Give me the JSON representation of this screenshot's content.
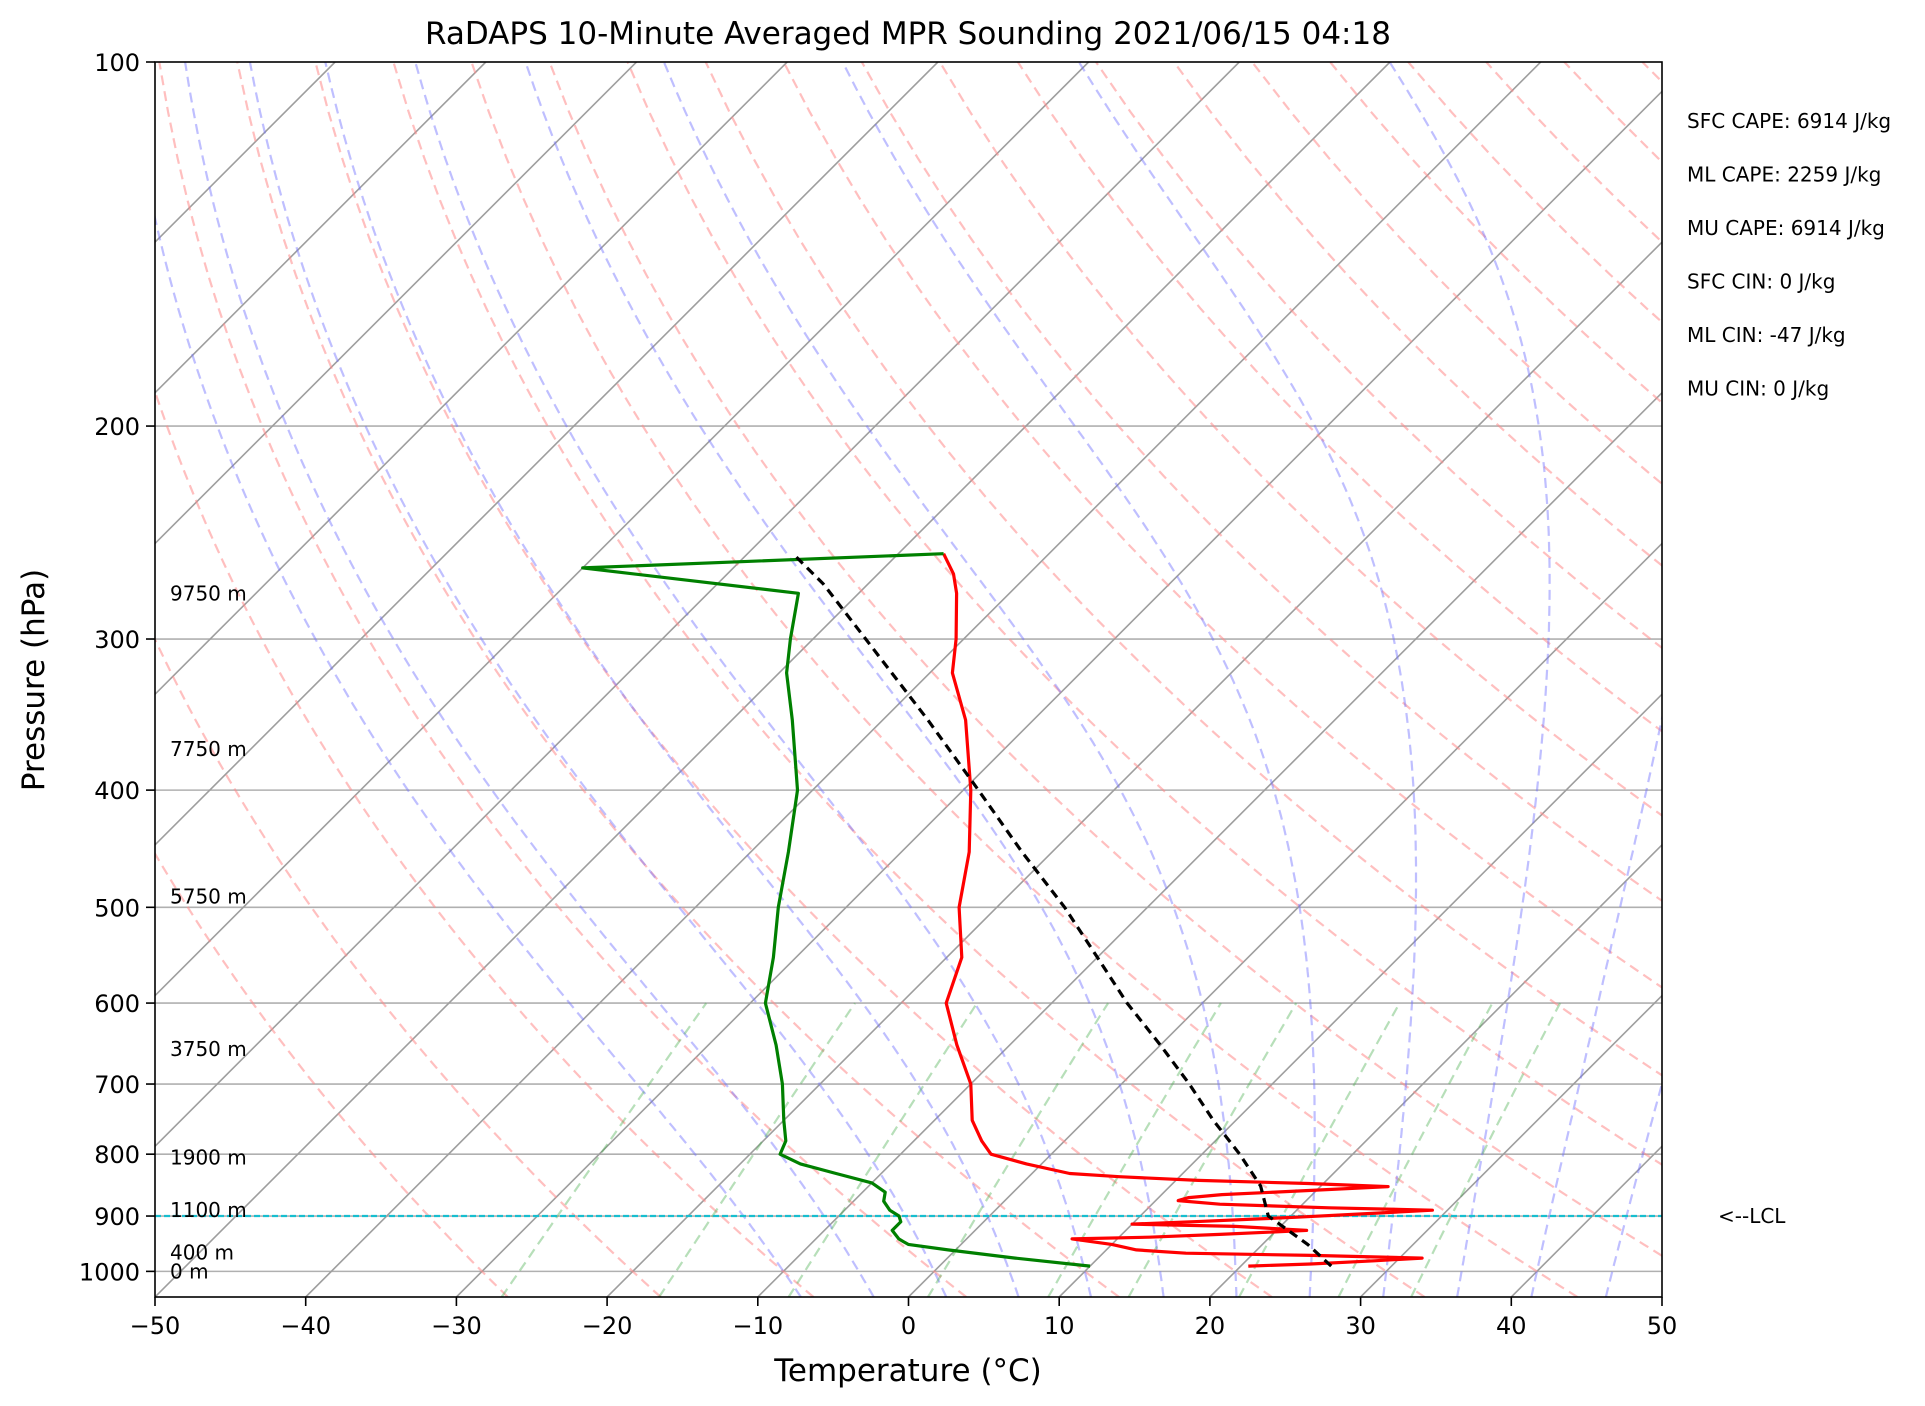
{
  "chart_data": {
    "type": "line",
    "subtype": "skew-T log-P",
    "title": "RaDAPS 10-Minute Averaged MPR Sounding 2021/06/15 04:18",
    "xlabel": "Temperature (°C)",
    "ylabel": "Pressure (hPa)",
    "xlim": [
      -50,
      50
    ],
    "ylim": [
      1050,
      100
    ],
    "y_scale": "log",
    "grid": true,
    "x_ticks": [
      -50,
      -40,
      -30,
      -20,
      -10,
      0,
      10,
      20,
      30,
      40,
      50
    ],
    "x_tick_labels": [
      "−50",
      "−40",
      "−30",
      "−20",
      "−10",
      "0",
      "10",
      "20",
      "30",
      "40",
      "50"
    ],
    "y_ticks": [
      100,
      200,
      300,
      400,
      500,
      600,
      700,
      800,
      900,
      1000
    ],
    "y_tick_labels": [
      "100",
      "200",
      "300",
      "400",
      "500",
      "600",
      "700",
      "800",
      "900",
      "1000"
    ],
    "height_labels": [
      {
        "text": "9750 m",
        "p": 275
      },
      {
        "text": "7750 m",
        "p": 370
      },
      {
        "text": "5750 m",
        "p": 490
      },
      {
        "text": "3750 m",
        "p": 655
      },
      {
        "text": "1900 m",
        "p": 805
      },
      {
        "text": "1100 m",
        "p": 890
      },
      {
        "text": "400 m",
        "p": 965
      },
      {
        "text": "0 m",
        "p": 1000
      }
    ],
    "parameters": [
      "SFC CAPE: 6914 J/kg",
      "ML CAPE: 2259 J/kg",
      "MU CAPE: 6914 J/kg",
      "SFC CIN: 0 J/kg",
      "ML CIN: -47 J/kg",
      "MU CIN: 0 J/kg"
    ],
    "lcl": {
      "p": 900,
      "label": "<--LCL",
      "color": "#17becf"
    },
    "series": [
      {
        "role": "temperature",
        "color": "#ff0000",
        "points": [
          {
            "p": 990,
            "t": 20.5
          },
          {
            "p": 986,
            "t": 24.5
          },
          {
            "p": 980,
            "t": 28.5
          },
          {
            "p": 975,
            "t": 31.5
          },
          {
            "p": 970,
            "t": 24.0
          },
          {
            "p": 966,
            "t": 15.5
          },
          {
            "p": 960,
            "t": 12.0
          },
          {
            "p": 950,
            "t": 10.0
          },
          {
            "p": 940,
            "t": 7.0
          },
          {
            "p": 937,
            "t": 12.0
          },
          {
            "p": 932,
            "t": 16.5
          },
          {
            "p": 925,
            "t": 22.0
          },
          {
            "p": 918,
            "t": 17.0
          },
          {
            "p": 914,
            "t": 10.0
          },
          {
            "p": 909,
            "t": 14.5
          },
          {
            "p": 902,
            "t": 20.5
          },
          {
            "p": 895,
            "t": 25.5
          },
          {
            "p": 890,
            "t": 29.0
          },
          {
            "p": 886,
            "t": 22.0
          },
          {
            "p": 880,
            "t": 14.5
          },
          {
            "p": 874,
            "t": 11.5
          },
          {
            "p": 869,
            "t": 12.0
          },
          {
            "p": 864,
            "t": 14.0
          },
          {
            "p": 858,
            "t": 19.0
          },
          {
            "p": 851,
            "t": 24.5
          },
          {
            "p": 846,
            "t": 19.0
          },
          {
            "p": 841,
            "t": 11.5
          },
          {
            "p": 835,
            "t": 6.0
          },
          {
            "p": 830,
            "t": 2.5
          },
          {
            "p": 815,
            "t": -1.0
          },
          {
            "p": 800,
            "t": -4.0
          },
          {
            "p": 780,
            "t": -5.5
          },
          {
            "p": 750,
            "t": -7.5
          },
          {
            "p": 700,
            "t": -10.0
          },
          {
            "p": 650,
            "t": -13.5
          },
          {
            "p": 600,
            "t": -17.0
          },
          {
            "p": 550,
            "t": -19.0
          },
          {
            "p": 500,
            "t": -22.5
          },
          {
            "p": 450,
            "t": -25.5
          },
          {
            "p": 400,
            "t": -29.5
          },
          {
            "p": 350,
            "t": -34.5
          },
          {
            "p": 320,
            "t": -38.5
          },
          {
            "p": 300,
            "t": -40.5
          },
          {
            "p": 275,
            "t": -43.5
          },
          {
            "p": 265,
            "t": -45.0
          },
          {
            "p": 255,
            "t": -47.0
          }
        ]
      },
      {
        "role": "dewpoint",
        "color": "#008000",
        "points": [
          {
            "p": 990,
            "t": 10.0
          },
          {
            "p": 975,
            "t": 4.5
          },
          {
            "p": 960,
            "t": -0.5
          },
          {
            "p": 950,
            "t": -3.5
          },
          {
            "p": 945,
            "t": -4.0
          },
          {
            "p": 940,
            "t": -4.5
          },
          {
            "p": 925,
            "t": -5.5
          },
          {
            "p": 910,
            "t": -5.5
          },
          {
            "p": 900,
            "t": -6.0
          },
          {
            "p": 890,
            "t": -7.0
          },
          {
            "p": 875,
            "t": -8.0
          },
          {
            "p": 860,
            "t": -8.5
          },
          {
            "p": 845,
            "t": -10.0
          },
          {
            "p": 830,
            "t": -13.0
          },
          {
            "p": 815,
            "t": -16.0
          },
          {
            "p": 800,
            "t": -18.0
          },
          {
            "p": 780,
            "t": -18.5
          },
          {
            "p": 750,
            "t": -20.0
          },
          {
            "p": 700,
            "t": -22.5
          },
          {
            "p": 650,
            "t": -25.5
          },
          {
            "p": 600,
            "t": -29.0
          },
          {
            "p": 550,
            "t": -31.5
          },
          {
            "p": 500,
            "t": -34.5
          },
          {
            "p": 450,
            "t": -37.5
          },
          {
            "p": 400,
            "t": -41.0
          },
          {
            "p": 350,
            "t": -46.0
          },
          {
            "p": 320,
            "t": -49.5
          },
          {
            "p": 300,
            "t": -51.5
          },
          {
            "p": 275,
            "t": -54.0
          },
          {
            "p": 262,
            "t": -70.0
          },
          {
            "p": 255,
            "t": -47.0
          }
        ]
      },
      {
        "role": "parcel",
        "color": "#000000",
        "points": [
          {
            "p": 990,
            "t": 26.0
          },
          {
            "p": 950,
            "t": 23.0
          },
          {
            "p": 900,
            "t": 18.5
          },
          {
            "p": 850,
            "t": 16.0
          },
          {
            "p": 800,
            "t": 12.5
          },
          {
            "p": 750,
            "t": 8.5
          },
          {
            "p": 700,
            "t": 4.5
          },
          {
            "p": 650,
            "t": 0.0
          },
          {
            "p": 600,
            "t": -5.0
          },
          {
            "p": 550,
            "t": -10.0
          },
          {
            "p": 500,
            "t": -15.5
          },
          {
            "p": 450,
            "t": -22.0
          },
          {
            "p": 400,
            "t": -29.0
          },
          {
            "p": 350,
            "t": -37.0
          },
          {
            "p": 300,
            "t": -46.5
          },
          {
            "p": 270,
            "t": -53.0
          },
          {
            "p": 255,
            "t": -57.0
          }
        ]
      }
    ]
  }
}
